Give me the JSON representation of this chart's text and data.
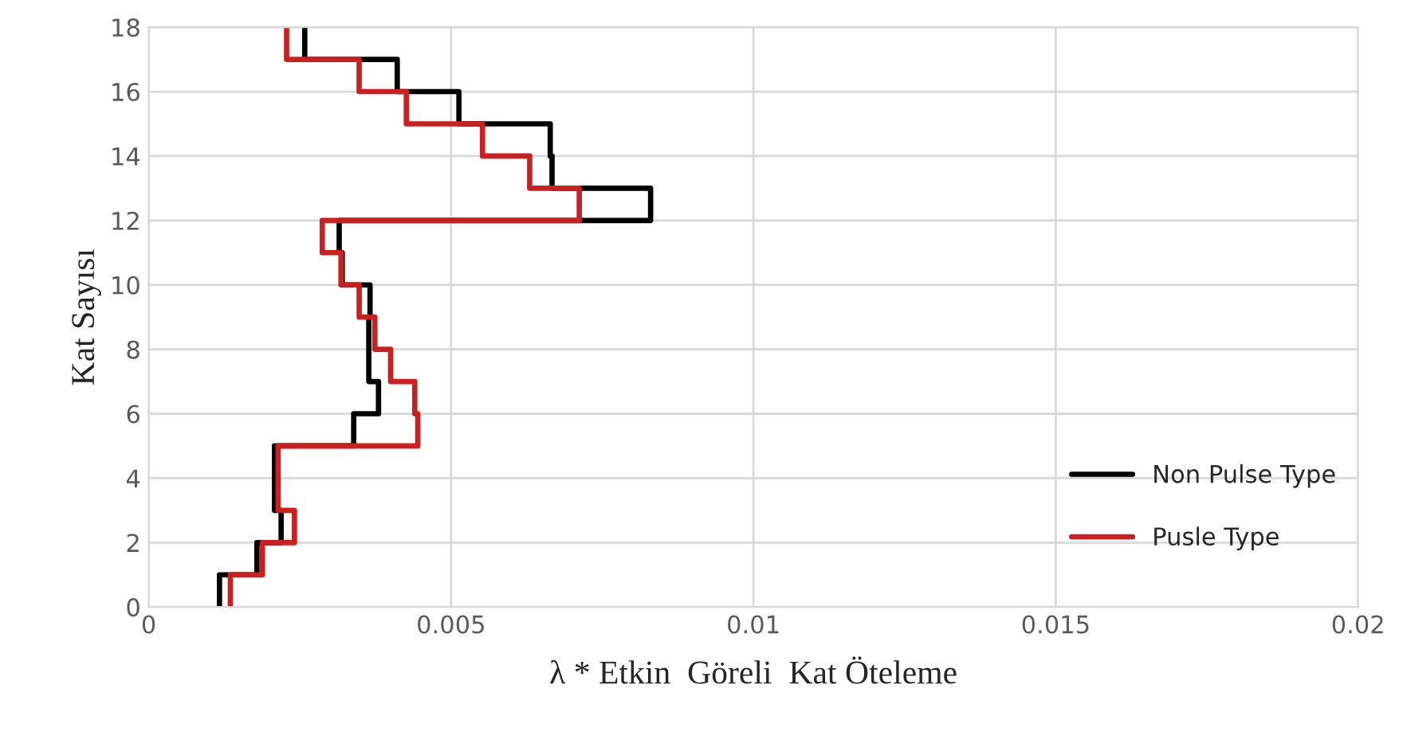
{
  "chart_data": {
    "type": "step",
    "orientation": "horizontal",
    "xlabel": "λ * Etkin  Göreli  Kat Öteleme",
    "ylabel": "Kat Sayısı",
    "x": [
      0,
      1,
      2,
      3,
      4,
      5,
      6,
      7,
      8,
      9,
      10,
      11,
      12,
      13,
      14,
      15,
      16,
      17,
      18
    ],
    "series": [
      {
        "name": "Non Pulse Type",
        "color": "#000000",
        "values": [
          0.00117,
          0.00179,
          0.00219,
          0.00208,
          0.00208,
          0.00339,
          0.0038,
          0.00364,
          0.00364,
          0.00366,
          0.0032,
          0.00315,
          0.0083,
          0.00667,
          0.00664,
          0.00513,
          0.00411,
          0.00258,
          0.00258
        ]
      },
      {
        "name": "Pusle Type",
        "color": "#cc1f1f",
        "values": [
          0.00135,
          0.00188,
          0.00241,
          0.00214,
          0.00214,
          0.00445,
          0.0044,
          0.004,
          0.00374,
          0.00348,
          0.00318,
          0.00287,
          0.00712,
          0.0063,
          0.00552,
          0.00426,
          0.00348,
          0.00228,
          0.00228
        ]
      }
    ],
    "xlim": [
      0,
      0.02
    ],
    "xticks": [
      0,
      0.005,
      0.01,
      0.015,
      0.02
    ],
    "ylim": [
      0,
      18
    ],
    "yticks": [
      0,
      2,
      4,
      6,
      8,
      10,
      12,
      14,
      16,
      18
    ],
    "grid": true,
    "legend": "bottom right",
    "line_style": "solid"
  }
}
